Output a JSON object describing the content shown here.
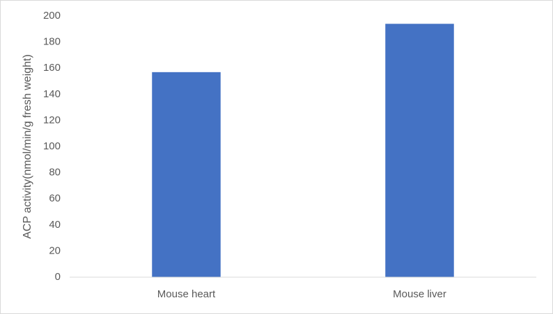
{
  "chart_data": {
    "type": "bar",
    "y_label": "ACP activity(nmol/min/g fresh weight)",
    "categories": [
      "Mouse heart",
      "Mouse liver"
    ],
    "values": [
      157,
      194
    ],
    "color": "#4472c4",
    "ylim": [
      0,
      200
    ],
    "yticks": [
      0,
      20,
      40,
      60,
      80,
      100,
      120,
      140,
      160,
      180,
      200
    ],
    "grid": false
  }
}
